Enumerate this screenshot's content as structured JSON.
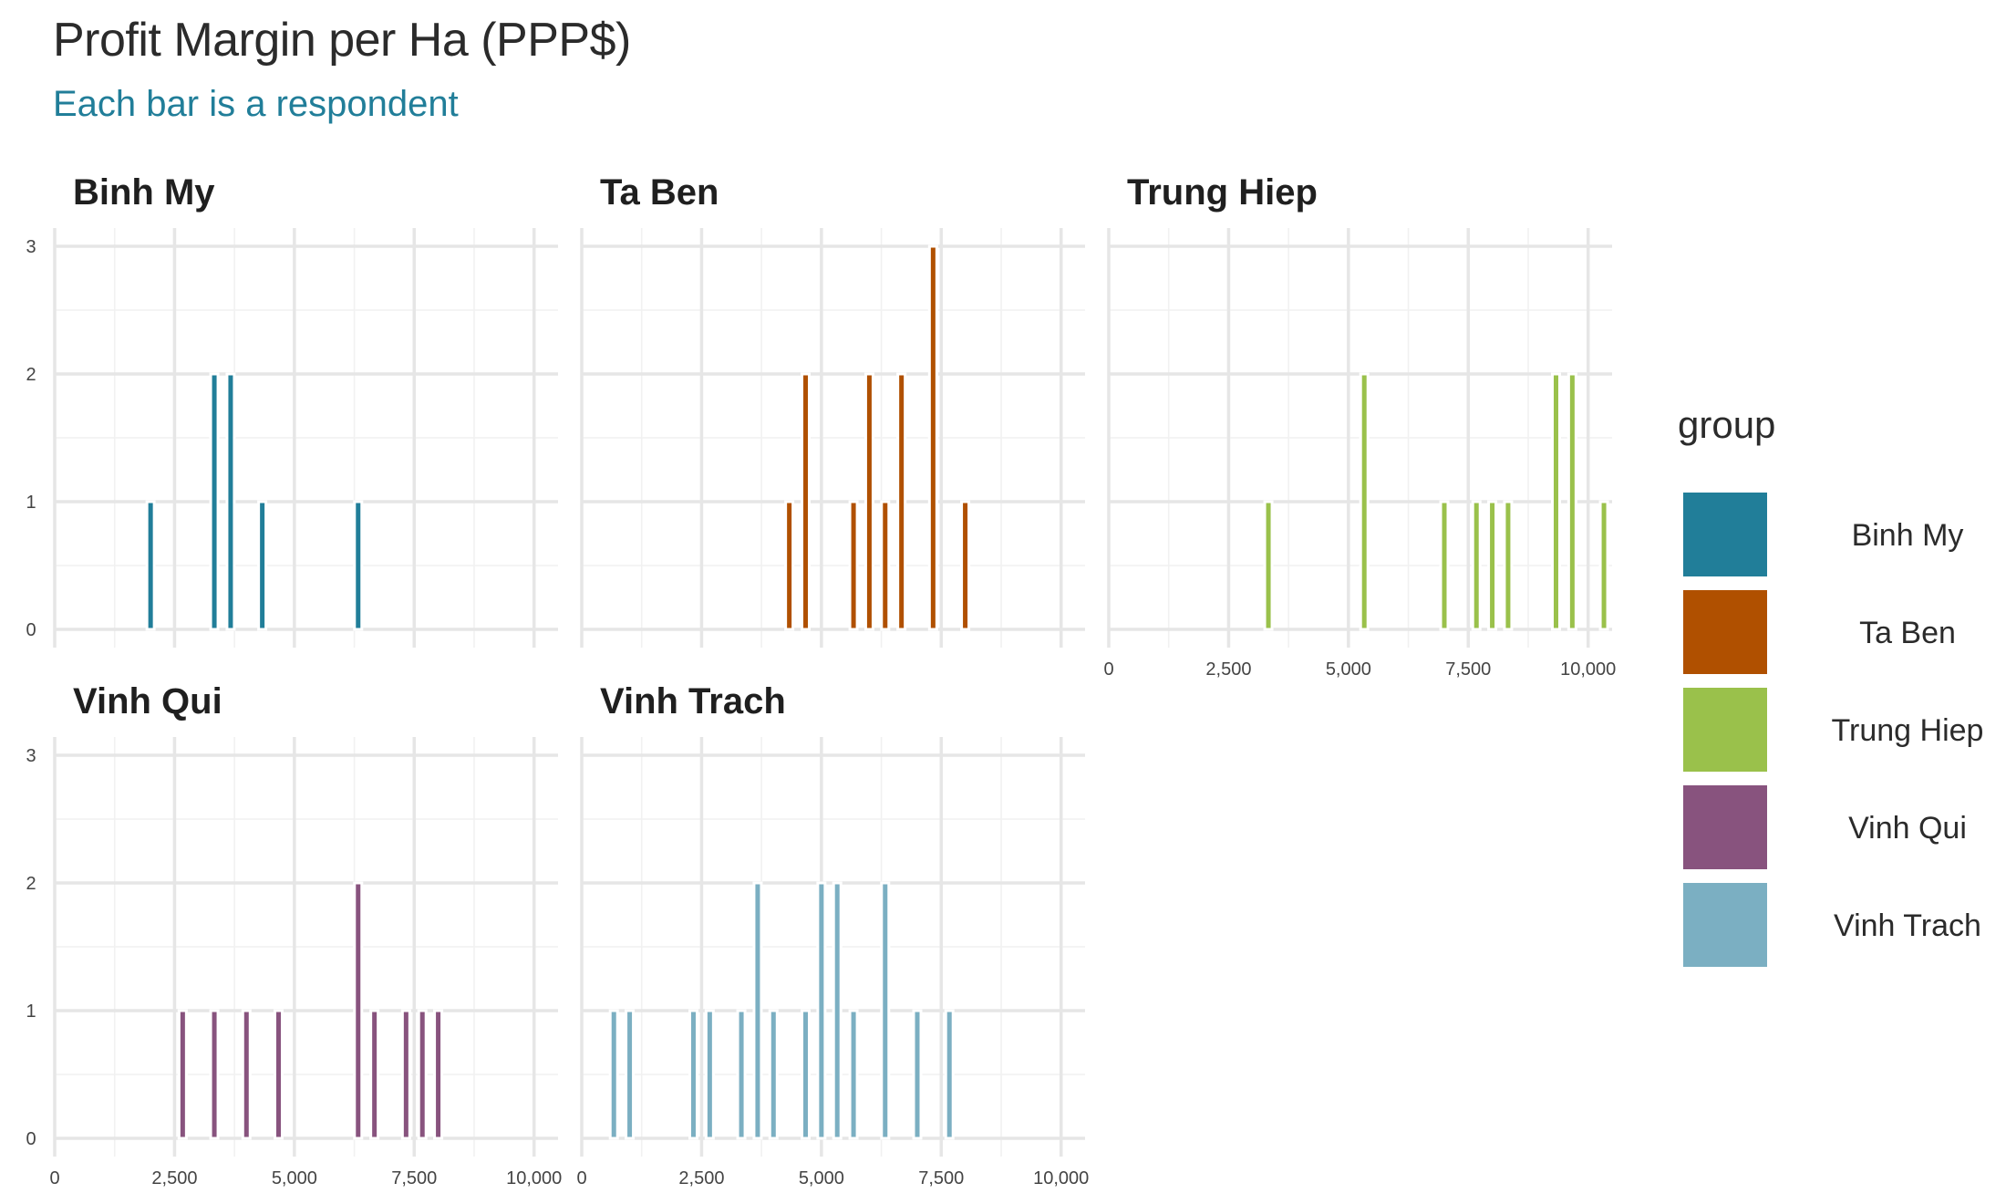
{
  "chart_data": {
    "type": "bar",
    "title": "Profit Margin per Ha (PPP$)",
    "subtitle": "Each bar is a respondent",
    "xlim": [
      0,
      10500
    ],
    "ylim": [
      0,
      3
    ],
    "x_ticks": [
      0,
      2500,
      5000,
      7500,
      10000
    ],
    "x_tick_labels": [
      "0",
      "2,500",
      "5,000",
      "7,500",
      "10,000"
    ],
    "y_ticks": [
      0,
      1,
      2,
      3
    ],
    "y_tick_labels": [
      "0",
      "1",
      "2",
      "3"
    ],
    "bin_width": 336,
    "grid": true,
    "legend": {
      "title": "group",
      "position": "right"
    },
    "facets": [
      {
        "name": "Binh My",
        "color": "#217e99",
        "bins": [
          {
            "x": 2000,
            "count": 1
          },
          {
            "x": 3330,
            "count": 2
          },
          {
            "x": 3670,
            "count": 2
          },
          {
            "x": 4330,
            "count": 1
          },
          {
            "x": 6330,
            "count": 1
          }
        ]
      },
      {
        "name": "Ta Ben",
        "color": "#b05000",
        "bins": [
          {
            "x": 4330,
            "count": 1
          },
          {
            "x": 4670,
            "count": 2
          },
          {
            "x": 5670,
            "count": 1
          },
          {
            "x": 6000,
            "count": 2
          },
          {
            "x": 6330,
            "count": 1
          },
          {
            "x": 6670,
            "count": 2
          },
          {
            "x": 7330,
            "count": 3
          },
          {
            "x": 8000,
            "count": 1
          }
        ]
      },
      {
        "name": "Trung Hiep",
        "color": "#9ac14b",
        "bins": [
          {
            "x": 3330,
            "count": 1
          },
          {
            "x": 5330,
            "count": 2
          },
          {
            "x": 7000,
            "count": 1
          },
          {
            "x": 7670,
            "count": 1
          },
          {
            "x": 8000,
            "count": 1
          },
          {
            "x": 8330,
            "count": 1
          },
          {
            "x": 9330,
            "count": 2
          },
          {
            "x": 9670,
            "count": 2
          },
          {
            "x": 10330,
            "count": 1
          }
        ]
      },
      {
        "name": "Vinh Qui",
        "color": "#88537e",
        "bins": [
          {
            "x": 2670,
            "count": 1
          },
          {
            "x": 3330,
            "count": 1
          },
          {
            "x": 4000,
            "count": 1
          },
          {
            "x": 4670,
            "count": 1
          },
          {
            "x": 6330,
            "count": 2
          },
          {
            "x": 6670,
            "count": 1
          },
          {
            "x": 7330,
            "count": 1
          },
          {
            "x": 7670,
            "count": 1
          },
          {
            "x": 8000,
            "count": 1
          }
        ]
      },
      {
        "name": "Vinh Trach",
        "color": "#7bafc2",
        "bins": [
          {
            "x": 670,
            "count": 1
          },
          {
            "x": 1000,
            "count": 1
          },
          {
            "x": 2330,
            "count": 1
          },
          {
            "x": 2670,
            "count": 1
          },
          {
            "x": 3330,
            "count": 1
          },
          {
            "x": 3670,
            "count": 2
          },
          {
            "x": 4000,
            "count": 1
          },
          {
            "x": 4670,
            "count": 1
          },
          {
            "x": 5000,
            "count": 2
          },
          {
            "x": 5330,
            "count": 2
          },
          {
            "x": 5670,
            "count": 1
          },
          {
            "x": 6330,
            "count": 2
          },
          {
            "x": 7000,
            "count": 1
          },
          {
            "x": 7670,
            "count": 1
          }
        ]
      }
    ]
  }
}
